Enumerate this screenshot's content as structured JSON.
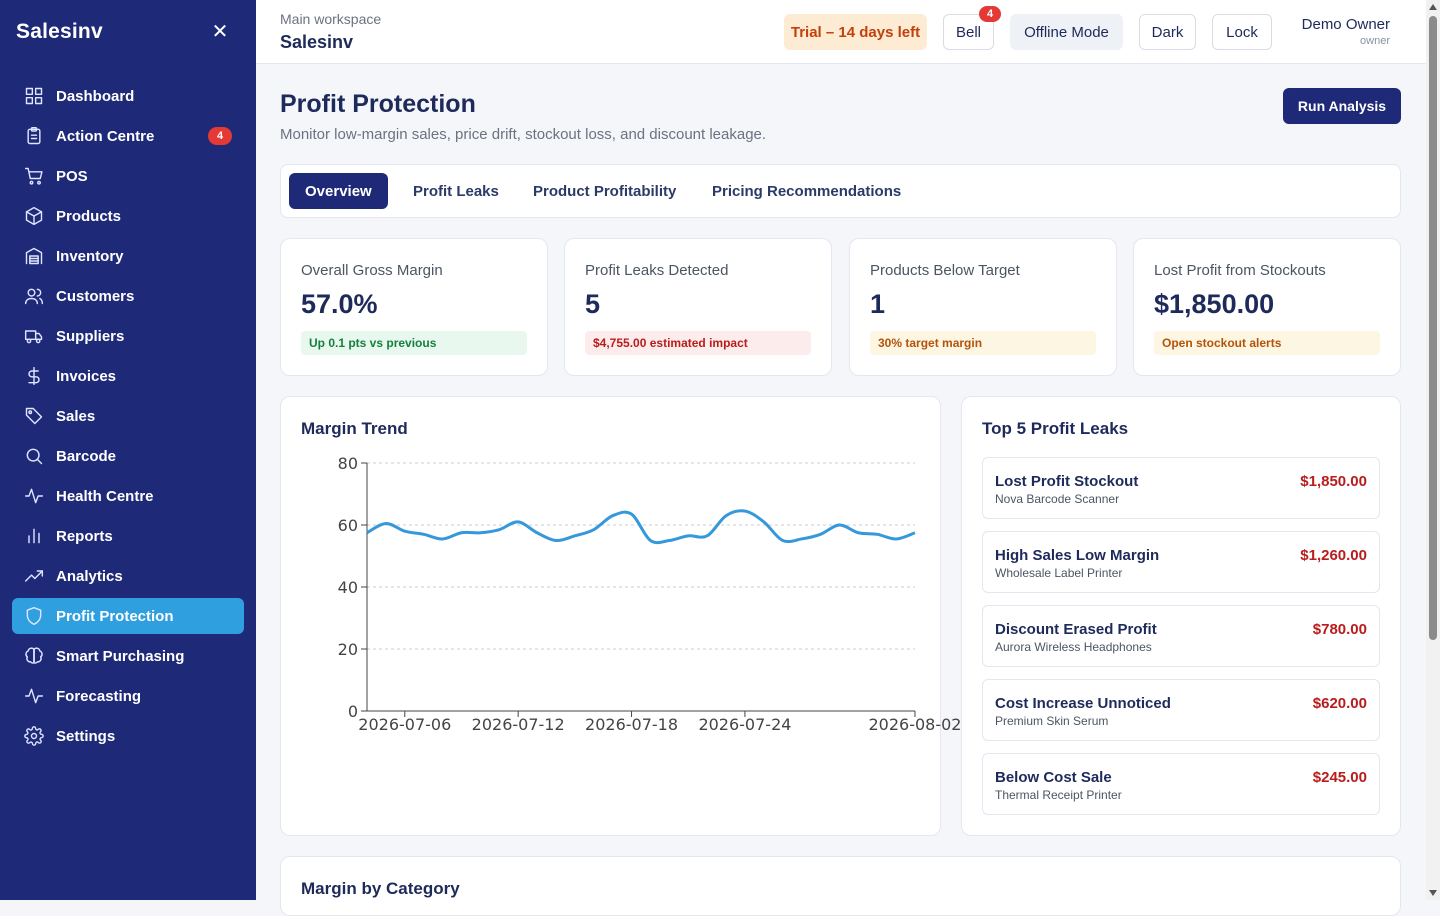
{
  "sidebar": {
    "brand": "Salesinv",
    "close_icon": "close-icon",
    "items": [
      {
        "label": "Dashboard",
        "icon": "grid-icon"
      },
      {
        "label": "Action Centre",
        "icon": "clipboard-icon",
        "badge": "4"
      },
      {
        "label": "POS",
        "icon": "cart-icon"
      },
      {
        "label": "Products",
        "icon": "box-icon"
      },
      {
        "label": "Inventory",
        "icon": "warehouse-icon"
      },
      {
        "label": "Customers",
        "icon": "users-icon"
      },
      {
        "label": "Suppliers",
        "icon": "truck-icon"
      },
      {
        "label": "Invoices",
        "icon": "dollar-icon"
      },
      {
        "label": "Sales",
        "icon": "tag-icon"
      },
      {
        "label": "Barcode",
        "icon": "search-icon"
      },
      {
        "label": "Health Centre",
        "icon": "pulse-icon"
      },
      {
        "label": "Reports",
        "icon": "bar-chart-icon"
      },
      {
        "label": "Analytics",
        "icon": "trend-up-icon"
      },
      {
        "label": "Profit Protection",
        "icon": "shield-icon",
        "active": true
      },
      {
        "label": "Smart Purchasing",
        "icon": "brain-icon"
      },
      {
        "label": "Forecasting",
        "icon": "pulse-icon"
      },
      {
        "label": "Settings",
        "icon": "gear-icon"
      }
    ]
  },
  "header": {
    "workspace_label": "Main workspace",
    "workspace_name": "Salesinv",
    "trial": "Trial – 14 days left",
    "bell": "Bell",
    "bell_badge": "4",
    "offline": "Offline Mode",
    "dark": "Dark",
    "lock": "Lock",
    "user_name": "Demo Owner",
    "user_role": "owner"
  },
  "page": {
    "title": "Profit Protection",
    "subtitle": "Monitor low-margin sales, price drift, stockout loss, and discount leakage.",
    "run_button": "Run Analysis"
  },
  "tabs": [
    "Overview",
    "Profit Leaks",
    "Product Profitability",
    "Pricing Recommendations"
  ],
  "active_tab": "Overview",
  "kpis": [
    {
      "label": "Overall Gross Margin",
      "value": "57.0%",
      "note": "Up 0.1 pts vs previous",
      "tone": "green"
    },
    {
      "label": "Profit Leaks Detected",
      "value": "5",
      "note": "$4,755.00 estimated impact",
      "tone": "red"
    },
    {
      "label": "Products Below Target",
      "value": "1",
      "note": "30% target margin",
      "tone": "amber"
    },
    {
      "label": "Lost Profit from Stockouts",
      "value": "$1,850.00",
      "note": "Open stockout alerts",
      "tone": "amber"
    }
  ],
  "margin_trend": {
    "title": "Margin Trend"
  },
  "top_leaks": {
    "title": "Top 5 Profit Leaks",
    "items": [
      {
        "title": "Lost Profit Stockout",
        "product": "Nova Barcode Scanner",
        "amount": "$1,850.00"
      },
      {
        "title": "High Sales Low Margin",
        "product": "Wholesale Label Printer",
        "amount": "$1,260.00"
      },
      {
        "title": "Discount Erased Profit",
        "product": "Aurora Wireless Headphones",
        "amount": "$780.00"
      },
      {
        "title": "Cost Increase Unnoticed",
        "product": "Premium Skin Serum",
        "amount": "$620.00"
      },
      {
        "title": "Below Cost Sale",
        "product": "Thermal Receipt Printer",
        "amount": "$245.00"
      }
    ]
  },
  "margin_by_category": {
    "title": "Margin by Category"
  },
  "colors": {
    "sidebar": "#1e2a78",
    "accent": "#2f9fe0",
    "line": "#3498db",
    "danger": "#b91c1c"
  },
  "chart_data": {
    "type": "line",
    "title": "Margin Trend",
    "xlabel": "",
    "ylabel": "",
    "ylim": [
      0,
      80
    ],
    "yticks": [
      0,
      20,
      40,
      60,
      80
    ],
    "xticks": [
      "2026-07-06",
      "2026-07-12",
      "2026-07-18",
      "2026-07-24",
      "2026-08-02"
    ],
    "grid": "horizontal-dashed",
    "x": [
      "2026-07-04",
      "2026-07-05",
      "2026-07-06",
      "2026-07-07",
      "2026-07-08",
      "2026-07-09",
      "2026-07-10",
      "2026-07-11",
      "2026-07-12",
      "2026-07-13",
      "2026-07-14",
      "2026-07-15",
      "2026-07-16",
      "2026-07-17",
      "2026-07-18",
      "2026-07-19",
      "2026-07-20",
      "2026-07-21",
      "2026-07-22",
      "2026-07-23",
      "2026-07-24",
      "2026-07-25",
      "2026-07-26",
      "2026-07-27",
      "2026-07-28",
      "2026-07-29",
      "2026-07-30",
      "2026-07-31",
      "2026-08-01",
      "2026-08-02"
    ],
    "values": [
      57.5,
      60.5,
      58,
      57,
      55.5,
      57.5,
      57.5,
      58.5,
      61,
      57.5,
      55,
      56.5,
      58.5,
      63,
      63.5,
      55,
      55,
      56.5,
      56.5,
      63,
      64.5,
      61,
      55,
      55.5,
      57,
      60,
      57.5,
      57,
      55.5,
      57.5
    ]
  }
}
